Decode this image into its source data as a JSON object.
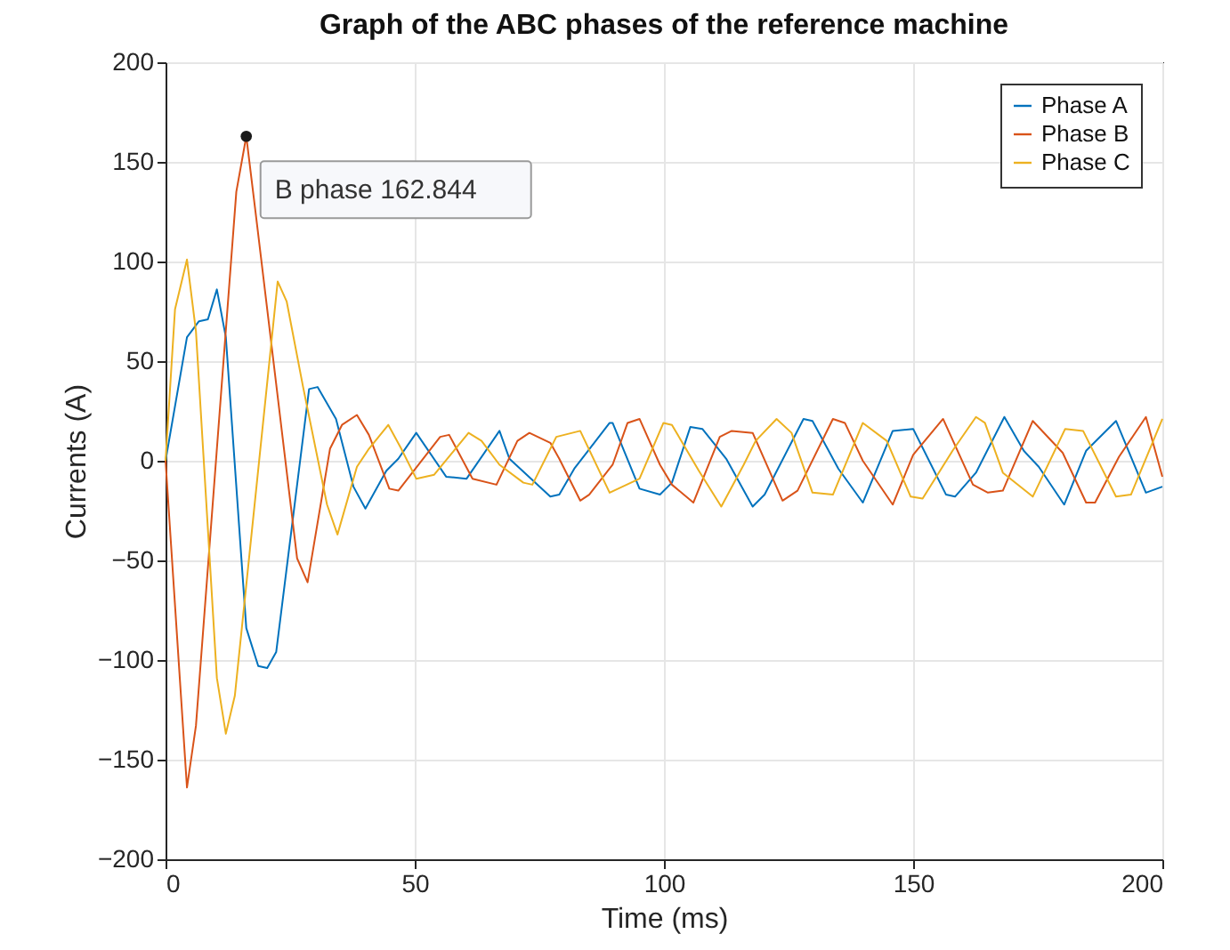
{
  "chart_data": {
    "type": "line",
    "title": "Graph of the ABC phases of the reference machine",
    "xlabel": "Time (ms)",
    "ylabel": "Currents (A)",
    "xlim": [
      0,
      200
    ],
    "xticks": [
      0,
      50,
      100,
      150,
      200
    ],
    "ylim": [
      -200,
      200
    ],
    "yticks": [
      -200,
      -150,
      -100,
      -50,
      0,
      50,
      100,
      150,
      200
    ],
    "grid": true,
    "legend": "top right",
    "line_style": "solid",
    "marker": "none",
    "annotations": [
      {
        "text": "B phase 162.844",
        "x": 16.2,
        "y": 162.844
      }
    ],
    "series": [
      {
        "name": "Phase A",
        "color": "#0072bd",
        "x": [
          0,
          4.3,
          6.7,
          8.5,
          10.3,
          12.1,
          16.2,
          18.6,
          20.4,
          22.2,
          28.8,
          30.5,
          34.2,
          37.7,
          40.1,
          44.3,
          46.7,
          50.3,
          56.3,
          60.4,
          67,
          69,
          77.2,
          79,
          82,
          89.1,
          89.7,
          95.1,
          99.2,
          101.6,
          105.3,
          107.7,
          112.5,
          117.8,
          120.2,
          128,
          129.8,
          135,
          139.9,
          145.9,
          150,
          156.6,
          158.4,
          162.6,
          168.3,
          172.2,
          175.2,
          180.3,
          184.7,
          190.7,
          196.7,
          200
        ],
        "values": [
          0,
          62,
          70,
          71,
          86,
          62,
          -84,
          -103,
          -104,
          -96,
          36,
          37,
          21,
          -13,
          -24,
          -5,
          1,
          14,
          -8,
          -9,
          15,
          1,
          -18,
          -17,
          -4,
          19,
          19,
          -14,
          -17,
          -11,
          17,
          16,
          1,
          -23,
          -17,
          21,
          20,
          -4,
          -21,
          15,
          16,
          -17,
          -18,
          -6,
          22,
          5,
          -3,
          -22,
          5,
          20,
          -16,
          -13
        ]
      },
      {
        "name": "Phase B",
        "color": "#d95319",
        "x": [
          0,
          4.3,
          6.1,
          14.2,
          16.2,
          18,
          26.4,
          28.5,
          33,
          35.4,
          38.4,
          40.8,
          44.9,
          46.7,
          55.1,
          56.9,
          61.6,
          66.4,
          70.6,
          73,
          77.2,
          79,
          83.2,
          85,
          89.7,
          92.7,
          95.1,
          99.2,
          101.6,
          105.9,
          111.2,
          113.6,
          117.8,
          123.8,
          126.8,
          133.9,
          136.3,
          139.9,
          145.9,
          150,
          156,
          162,
          165,
          168,
          174,
          180,
          184.7,
          186.5,
          191.3,
          196.7,
          200
        ],
        "values": [
          0,
          -164,
          -133,
          135,
          162.844,
          126,
          -49,
          -61,
          6,
          18,
          23,
          13,
          -14,
          -15,
          12,
          13,
          -9,
          -12,
          10,
          14,
          9,
          1,
          -20,
          -17,
          -2,
          19,
          21,
          -2,
          -12,
          -21,
          12,
          15,
          14,
          -20,
          -15,
          21,
          19,
          0,
          -22,
          3,
          21,
          -12,
          -16,
          -15,
          20,
          4,
          -21,
          -21,
          2,
          22,
          -8
        ]
      },
      {
        "name": "Phase C",
        "color": "#edb120",
        "x": [
          0,
          1.9,
          4.3,
          6.1,
          10.3,
          12.1,
          13.9,
          22.5,
          24.3,
          27.6,
          32.4,
          34.5,
          38.4,
          40.8,
          44.7,
          47.3,
          50.3,
          53.9,
          60.8,
          63.4,
          67,
          71.8,
          73.6,
          78.4,
          83.2,
          89.1,
          95.1,
          99.9,
          101.6,
          107,
          111.5,
          116,
          118.4,
          122.6,
          125.6,
          129.8,
          133.9,
          139.9,
          144.7,
          149.5,
          151.9,
          157.9,
          162.6,
          164.4,
          168,
          174,
          180.5,
          184.1,
          190.7,
          193.7,
          200
        ],
        "values": [
          0,
          76,
          101,
          65,
          -109,
          -137,
          -118,
          90,
          80,
          37,
          -22,
          -37,
          -3,
          6,
          18,
          6,
          -9,
          -7,
          14,
          10,
          -2,
          -11,
          -12,
          12,
          15,
          -16,
          -9,
          19,
          18,
          -5,
          -23,
          -2,
          10,
          21,
          14,
          -16,
          -17,
          19,
          10,
          -18,
          -19,
          5,
          22,
          19,
          -6,
          -18,
          16,
          15,
          -18,
          -17,
          21
        ]
      }
    ]
  }
}
